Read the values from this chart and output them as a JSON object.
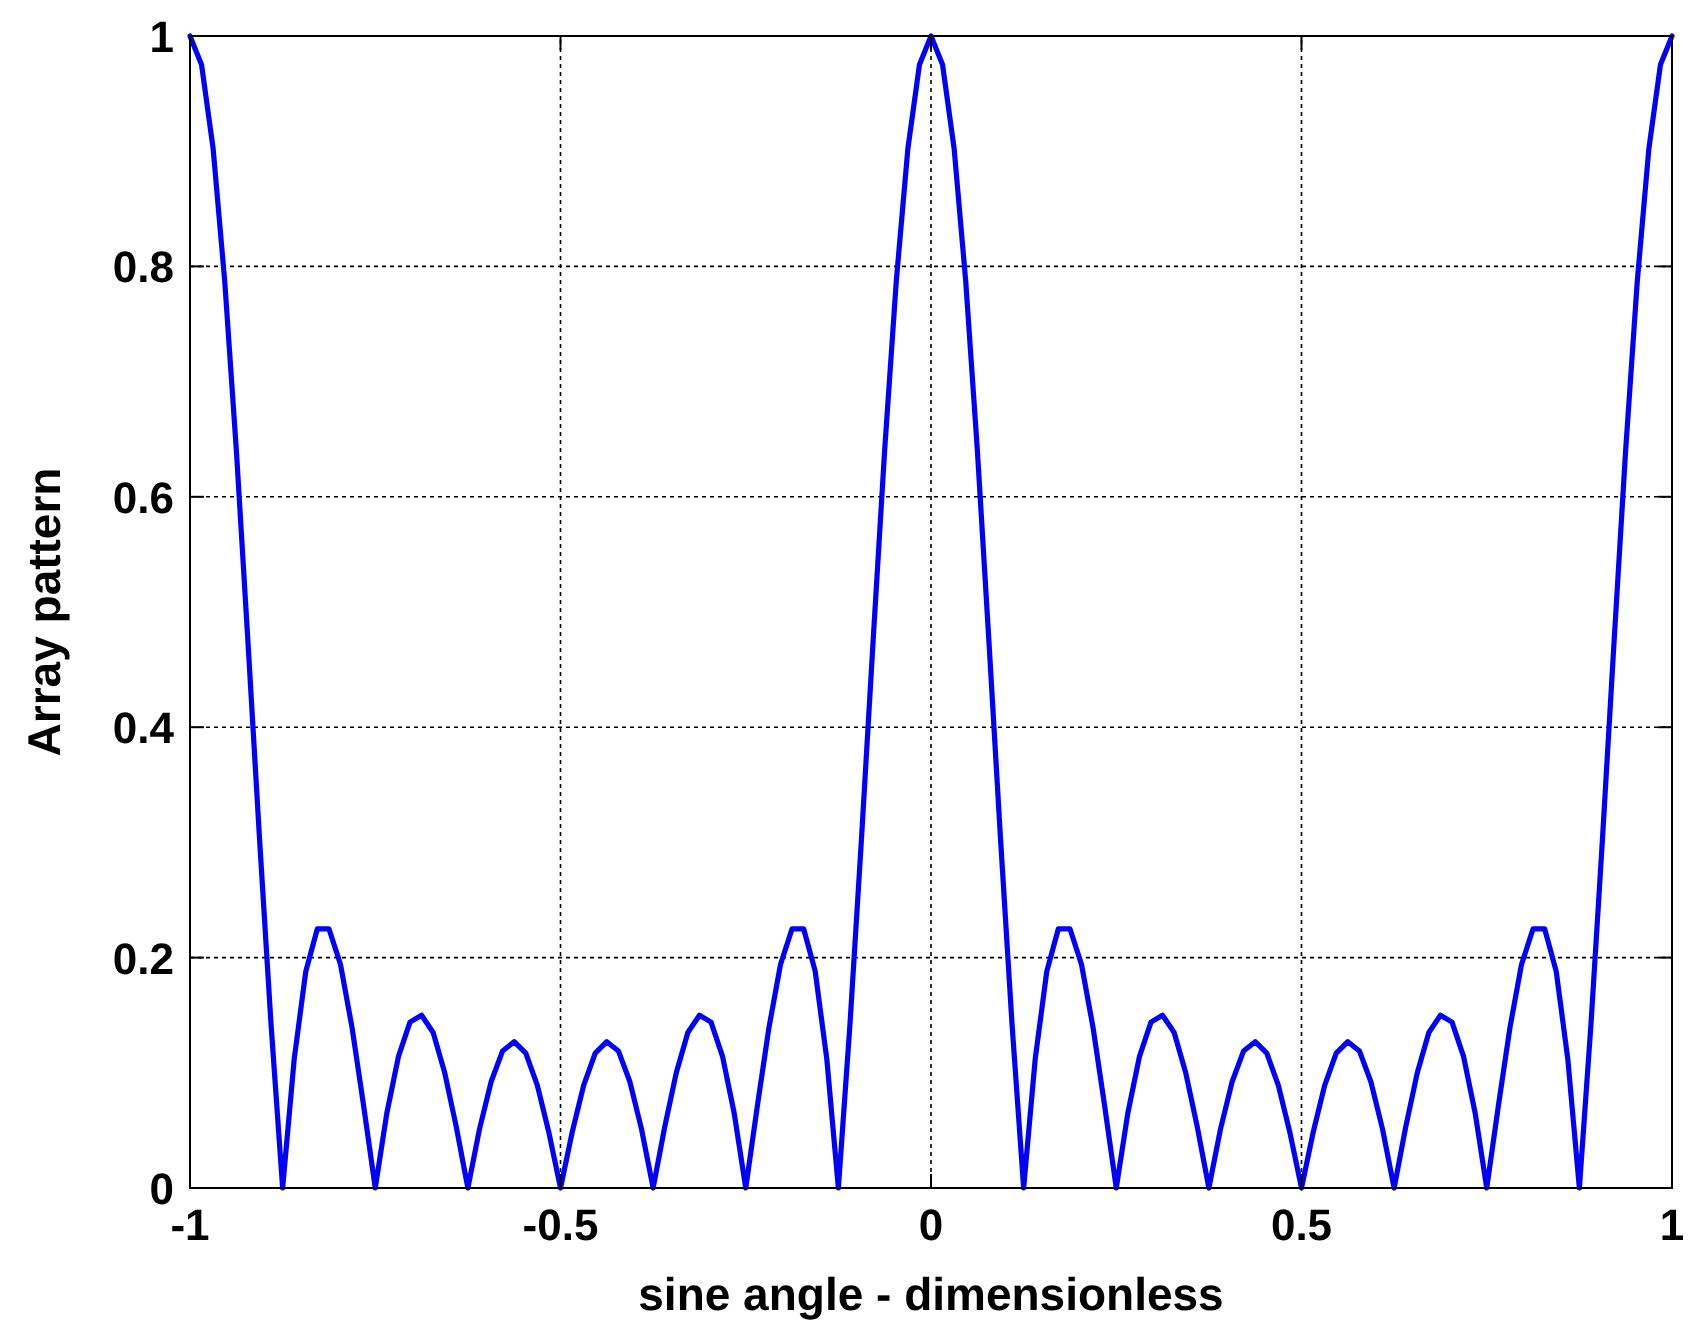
{
  "chart_data": {
    "type": "line",
    "xlabel": "sine angle - dimensionless",
    "ylabel": "Array pattern",
    "xlim": [
      -1,
      1
    ],
    "xticks": [
      -1,
      -0.5,
      0,
      0.5,
      1
    ],
    "ylim": [
      0,
      1
    ],
    "yticks": [
      0,
      0.2,
      0.4,
      0.6,
      0.8,
      1
    ],
    "grid": true,
    "marker": "none",
    "line_style": "solid",
    "x": [
      -1,
      -0.984375,
      -0.96875,
      -0.953125,
      -0.9375,
      -0.921875,
      -0.90625,
      -0.890625,
      -0.875,
      -0.859375,
      -0.84375,
      -0.828125,
      -0.8125,
      -0.796875,
      -0.78125,
      -0.765625,
      -0.75,
      -0.734375,
      -0.71875,
      -0.703125,
      -0.6875,
      -0.671875,
      -0.65625,
      -0.640625,
      -0.625,
      -0.609375,
      -0.59375,
      -0.578125,
      -0.5625,
      -0.546875,
      -0.53125,
      -0.515625,
      -0.5,
      -0.484375,
      -0.46875,
      -0.453125,
      -0.4375,
      -0.421875,
      -0.40625,
      -0.390625,
      -0.375,
      -0.359375,
      -0.34375,
      -0.328125,
      -0.3125,
      -0.296875,
      -0.28125,
      -0.265625,
      -0.25,
      -0.234375,
      -0.21875,
      -0.203125,
      -0.1875,
      -0.171875,
      -0.15625,
      -0.140625,
      -0.125,
      -0.109375,
      -0.09375,
      -0.078125,
      -0.0625,
      -0.046875,
      -0.03125,
      -0.015625,
      0,
      0.015625,
      0.03125,
      0.046875,
      0.0625,
      0.078125,
      0.09375,
      0.109375,
      0.125,
      0.140625,
      0.15625,
      0.171875,
      0.1875,
      0.203125,
      0.21875,
      0.234375,
      0.25,
      0.265625,
      0.28125,
      0.296875,
      0.3125,
      0.328125,
      0.34375,
      0.359375,
      0.375,
      0.390625,
      0.40625,
      0.421875,
      0.4375,
      0.453125,
      0.46875,
      0.484375,
      0.5,
      0.515625,
      0.53125,
      0.546875,
      0.5625,
      0.578125,
      0.59375,
      0.609375,
      0.625,
      0.640625,
      0.65625,
      0.671875,
      0.6875,
      0.703125,
      0.71875,
      0.734375,
      0.75,
      0.765625,
      0.78125,
      0.796875,
      0.8125,
      0.828125,
      0.84375,
      0.859375,
      0.875,
      0.890625,
      0.90625,
      0.921875,
      0.9375,
      0.953125,
      0.96875,
      0.984375,
      1
    ],
    "series": [
      {
        "color": "#0000ff",
        "values": [
          1,
          0.975,
          0.902,
          0.787,
          0.641,
          0.475,
          0.304,
          0.142,
          0,
          0.112,
          0.188,
          0.225,
          0.225,
          0.194,
          0.139,
          0.071,
          0,
          0.065,
          0.114,
          0.144,
          0.15,
          0.135,
          0.1,
          0.053,
          0,
          0.051,
          0.092,
          0.119,
          0.127,
          0.117,
          0.089,
          0.048,
          0,
          0.048,
          0.089,
          0.117,
          0.127,
          0.119,
          0.092,
          0.051,
          0,
          0.053,
          0.1,
          0.135,
          0.15,
          0.144,
          0.114,
          0.065,
          0,
          0.071,
          0.139,
          0.194,
          0.225,
          0.225,
          0.188,
          0.112,
          0,
          0.142,
          0.304,
          0.475,
          0.641,
          0.787,
          0.902,
          0.975,
          1,
          0.975,
          0.902,
          0.787,
          0.641,
          0.475,
          0.304,
          0.142,
          0,
          0.112,
          0.188,
          0.225,
          0.225,
          0.194,
          0.139,
          0.071,
          0,
          0.065,
          0.114,
          0.144,
          0.15,
          0.135,
          0.1,
          0.053,
          0,
          0.051,
          0.092,
          0.119,
          0.127,
          0.117,
          0.089,
          0.048,
          0,
          0.048,
          0.089,
          0.117,
          0.127,
          0.119,
          0.092,
          0.051,
          0,
          0.053,
          0.1,
          0.135,
          0.15,
          0.144,
          0.114,
          0.065,
          0,
          0.071,
          0.139,
          0.194,
          0.225,
          0.225,
          0.188,
          0.112,
          0,
          0.142,
          0.304,
          0.475,
          0.641,
          0.787,
          0.902,
          0.975,
          1
        ]
      }
    ]
  }
}
